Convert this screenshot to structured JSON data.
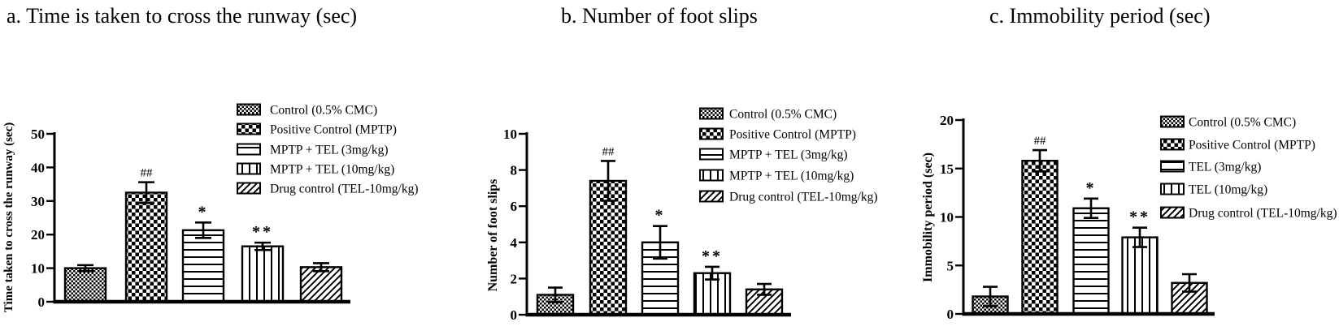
{
  "figure": {
    "background_color": "#ffffff",
    "ink_color": "#000000",
    "panel_count": 3
  },
  "chart_data": [
    {
      "id": "a",
      "type": "bar",
      "title": "a. Time is taken to cross the runway (sec)",
      "ylabel": "Time taken to cross the runway (sec)",
      "xlabel": "",
      "ylim": [
        0,
        50
      ],
      "yticks": [
        0,
        10,
        20,
        30,
        40,
        50
      ],
      "grid": false,
      "legend_position": "upper-right",
      "categories": [
        "Control (0.5% CMC)",
        "Positive Control (MPTP)",
        "MPTP + TEL (3mg/kg)",
        "MPTP + TEL (10mg/kg)",
        "Drug control (TEL-10mg/kg)"
      ],
      "values": [
        10.0,
        32.5,
        21.3,
        16.5,
        10.3
      ],
      "errors": [
        0.9,
        3.1,
        2.3,
        1.1,
        1.2
      ],
      "annotations": [
        "",
        "##",
        "*",
        "**",
        ""
      ],
      "bar_patterns": [
        "fine-checker",
        "coarse-checker",
        "horizontal-lines",
        "vertical-lines",
        "diagonal-lines"
      ],
      "bar_fill": "#ffffff",
      "bar_border": "#000000",
      "error_bar_style": "symmetric-with-caps"
    },
    {
      "id": "b",
      "type": "bar",
      "title": "b. Number of foot slips",
      "ylabel": "Number of foot slips",
      "xlabel": "",
      "ylim": [
        0,
        10
      ],
      "yticks": [
        0,
        2,
        4,
        6,
        8,
        10
      ],
      "grid": false,
      "legend_position": "upper-right",
      "categories": [
        "Control (0.5% CMC)",
        "Positive Control (MPTP)",
        "MPTP + TEL (3mg/kg)",
        "MPTP + TEL (10mg/kg)",
        "Drug control (TEL-10mg/kg)"
      ],
      "values": [
        1.1,
        7.4,
        4.0,
        2.3,
        1.4
      ],
      "errors": [
        0.4,
        1.1,
        0.9,
        0.35,
        0.3
      ],
      "annotations": [
        "",
        "##",
        "*",
        "**",
        ""
      ],
      "bar_patterns": [
        "fine-checker",
        "coarse-checker",
        "horizontal-lines",
        "vertical-lines",
        "diagonal-lines"
      ],
      "bar_fill": "#ffffff",
      "bar_border": "#000000",
      "error_bar_style": "symmetric-with-caps"
    },
    {
      "id": "c",
      "type": "bar",
      "title": "c. Immobility period (sec)",
      "ylabel": "Immobility period (sec)",
      "xlabel": "",
      "ylim": [
        0,
        20
      ],
      "yticks": [
        0,
        5,
        10,
        15,
        20
      ],
      "grid": false,
      "legend_position": "upper-right",
      "categories": [
        "Control (0.5% CMC)",
        "Positive Control (MPTP)",
        "TEL (3mg/kg)",
        "TEL (10mg/kg)",
        "Drug control (TEL-10mg/kg)"
      ],
      "values": [
        1.8,
        15.8,
        10.9,
        7.9,
        3.2
      ],
      "errors": [
        1.0,
        1.1,
        1.0,
        1.0,
        0.9
      ],
      "annotations": [
        "",
        "##",
        "*",
        "**",
        ""
      ],
      "bar_patterns": [
        "fine-checker",
        "coarse-checker",
        "horizontal-lines",
        "vertical-lines",
        "diagonal-lines"
      ],
      "bar_fill": "#ffffff",
      "bar_border": "#000000",
      "error_bar_style": "symmetric-with-caps"
    }
  ]
}
